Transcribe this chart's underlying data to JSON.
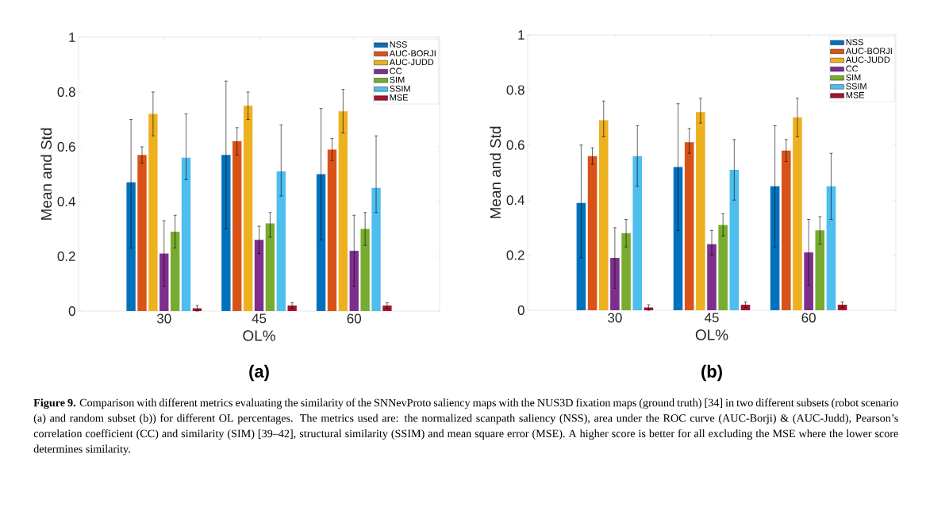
{
  "chart_data": [
    {
      "type": "bar",
      "categories": [
        "30",
        "45",
        "60"
      ],
      "xlabel": "OL%",
      "ylabel": "Mean and Std",
      "ylim": [
        0,
        1
      ],
      "yticks": [
        0,
        0.2,
        0.4,
        0.6,
        0.8,
        1
      ],
      "legend": "top right",
      "annotations": [
        "(a)",
        "**Figure 9.** Comparison with different metrics evaluating the similarity of the SNNevProto saliency maps with the NUS3D fixation maps (ground truth) [34] in two different subsets (robot scenario (a) and random subset (b)) for different OL percentages. The metrics used are: the normalized scanpath saliency (NSS), area under the ROC curve (AUC-Borji) & (AUC-Judd), Pearson’s correlation coefficient (CC) and similarity (SIM) [39–42], structural similarity (SSIM) and mean square error (MSE). A higher score is better for all excluding the MSE where the lower score determines similarity."
      ],
      "series": [
        {
          "name": "NSS",
          "color": "#0072bd",
          "values": [
            0.47,
            0.57,
            0.5
          ],
          "errors": [
            [
              0.23,
              0.7
            ],
            [
              0.3,
              0.84
            ],
            [
              0.26,
              0.74
            ]
          ]
        },
        {
          "name": "AUC-BORJI",
          "color": "#d95319",
          "values": [
            0.57,
            0.62,
            0.59
          ],
          "errors": [
            [
              0.54,
              0.6
            ],
            [
              0.57,
              0.67
            ],
            [
              0.55,
              0.63
            ]
          ]
        },
        {
          "name": "AUC-JUDD",
          "color": "#edb120",
          "values": [
            0.72,
            0.75,
            0.73
          ],
          "errors": [
            [
              0.64,
              0.8
            ],
            [
              0.7,
              0.8
            ],
            [
              0.65,
              0.81
            ]
          ]
        },
        {
          "name": "CC",
          "color": "#7e2f8e",
          "values": [
            0.21,
            0.26,
            0.22
          ],
          "errors": [
            [
              0.09,
              0.33
            ],
            [
              0.21,
              0.31
            ],
            [
              0.09,
              0.35
            ]
          ]
        },
        {
          "name": "SIM",
          "color": "#77ac30",
          "values": [
            0.29,
            0.32,
            0.3
          ],
          "errors": [
            [
              0.23,
              0.35
            ],
            [
              0.27,
              0.36
            ],
            [
              0.24,
              0.36
            ]
          ]
        },
        {
          "name": "SSIM",
          "color": "#4dbeee",
          "values": [
            0.56,
            0.51,
            0.45
          ],
          "errors": [
            [
              0.48,
              0.72
            ],
            [
              0.42,
              0.68
            ],
            [
              0.36,
              0.64
            ]
          ]
        },
        {
          "name": "MSE",
          "color": "#a2142f",
          "values": [
            0.01,
            0.02,
            0.02
          ],
          "errors": [
            0.01,
            0.01,
            0.01
          ]
        }
      ]
    },
    {
      "type": "bar",
      "categories": [
        "30",
        "45",
        "60"
      ],
      "xlabel": "OL%",
      "ylabel": "Mean and Std",
      "ylim": [
        0,
        1
      ],
      "yticks": [
        0,
        0.2,
        0.4,
        0.6,
        0.8,
        1
      ],
      "legend": "top right",
      "annotations": [
        "(b)"
      ],
      "series": [
        {
          "name": "NSS",
          "color": "#0072bd",
          "values": [
            0.39,
            0.52,
            0.45
          ],
          "errors": [
            [
              0.19,
              0.6
            ],
            [
              0.29,
              0.75
            ],
            [
              0.23,
              0.67
            ]
          ]
        },
        {
          "name": "AUC-BORJI",
          "color": "#d95319",
          "values": [
            0.56,
            0.61,
            0.58
          ],
          "errors": [
            [
              0.53,
              0.59
            ],
            [
              0.57,
              0.66
            ],
            [
              0.54,
              0.62
            ]
          ]
        },
        {
          "name": "AUC-JUDD",
          "color": "#edb120",
          "values": [
            0.69,
            0.72,
            0.7
          ],
          "errors": [
            [
              0.63,
              0.76
            ],
            [
              0.68,
              0.77
            ],
            [
              0.63,
              0.77
            ]
          ]
        },
        {
          "name": "CC",
          "color": "#7e2f8e",
          "values": [
            0.19,
            0.24,
            0.21
          ],
          "errors": [
            [
              0.08,
              0.3
            ],
            [
              0.2,
              0.29
            ],
            [
              0.09,
              0.33
            ]
          ]
        },
        {
          "name": "SIM",
          "color": "#77ac30",
          "values": [
            0.28,
            0.31,
            0.29
          ],
          "errors": [
            [
              0.23,
              0.33
            ],
            [
              0.27,
              0.35
            ],
            [
              0.24,
              0.34
            ]
          ]
        },
        {
          "name": "SSIM",
          "color": "#4dbeee",
          "values": [
            0.56,
            0.51,
            0.45
          ],
          "errors": [
            [
              0.45,
              0.67
            ],
            [
              0.4,
              0.62
            ],
            [
              0.33,
              0.57
            ]
          ]
        },
        {
          "name": "MSE",
          "color": "#a2142f",
          "values": [
            0.01,
            0.02,
            0.02
          ],
          "errors": [
            0.01,
            0.01,
            0.01
          ]
        }
      ]
    }
  ]
}
